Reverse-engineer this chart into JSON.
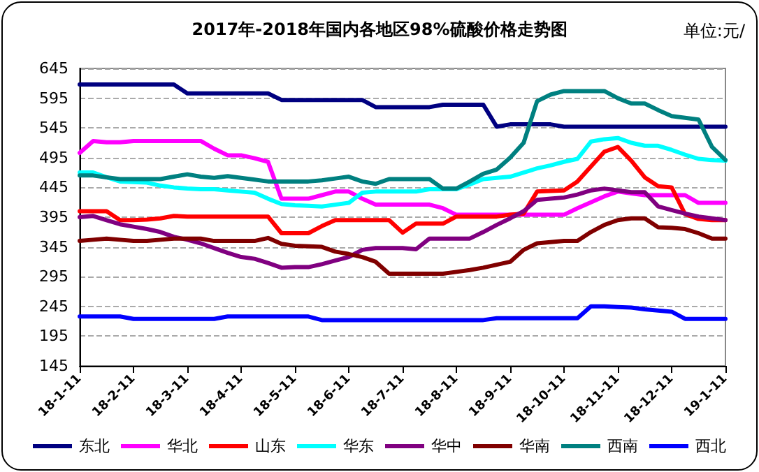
{
  "chart_data": {
    "type": "line",
    "title": "2017年-2018年国内各地区98%硫酸价格走势图",
    "annotations": [
      "单位:元/"
    ],
    "categories": [
      "18-1-11",
      null,
      null,
      null,
      "18-2-11",
      null,
      null,
      null,
      "18-3-11",
      null,
      null,
      null,
      "18-4-11",
      null,
      null,
      null,
      "18-5-11",
      null,
      null,
      null,
      "18-6-11",
      null,
      null,
      null,
      "18-7-11",
      null,
      null,
      null,
      "18-8-11",
      null,
      null,
      null,
      "18-9-11",
      null,
      null,
      null,
      "18-10-11",
      null,
      null,
      null,
      "18-11-11",
      null,
      null,
      null,
      "18-12-11",
      null,
      null,
      null,
      "19-1-11"
    ],
    "series": [
      {
        "name": "东北",
        "color": "#000080",
        "values": [
          618,
          618,
          618,
          618,
          618,
          618,
          618,
          618,
          603,
          603,
          603,
          603,
          603,
          603,
          603,
          592,
          592,
          592,
          592,
          592,
          592,
          592,
          580,
          580,
          580,
          580,
          580,
          584,
          584,
          584,
          584,
          547,
          551,
          551,
          551,
          551,
          547,
          547,
          547,
          547,
          547,
          547,
          547,
          547,
          547,
          547,
          547,
          547,
          547
        ]
      },
      {
        "name": "华北",
        "color": "#ff00ff",
        "values": [
          503,
          523,
          521,
          521,
          523,
          523,
          523,
          523,
          523,
          523,
          510,
          499,
          499,
          494,
          488,
          426,
          426,
          426,
          432,
          438,
          438,
          426,
          416,
          416,
          416,
          416,
          416,
          410,
          399,
          399,
          399,
          399,
          399,
          399,
          399,
          399,
          399,
          410,
          420,
          430,
          438,
          435,
          432,
          432,
          432,
          432,
          419,
          419,
          419
        ]
      },
      {
        "name": "山东",
        "color": "#ff0000",
        "values": [
          405,
          405,
          405,
          390,
          390,
          391,
          393,
          397,
          396,
          396,
          396,
          396,
          396,
          396,
          396,
          368,
          368,
          368,
          380,
          390,
          390,
          390,
          390,
          390,
          369,
          384,
          384,
          384,
          396,
          396,
          396,
          396,
          399,
          401,
          438,
          439,
          440,
          455,
          480,
          505,
          513,
          490,
          462,
          447,
          445,
          400,
          392,
          390,
          390
        ]
      },
      {
        "name": "华东",
        "color": "#00ffff",
        "values": [
          470,
          470,
          462,
          455,
          454,
          453,
          448,
          445,
          443,
          442,
          442,
          440,
          438,
          436,
          426,
          417,
          415,
          414,
          413,
          416,
          419,
          436,
          438,
          438,
          438,
          438,
          442,
          442,
          442,
          450,
          459,
          461,
          463,
          470,
          477,
          482,
          488,
          493,
          522,
          526,
          528,
          520,
          515,
          515,
          508,
          500,
          493,
          491,
          490
        ]
      },
      {
        "name": "华中",
        "color": "#800080",
        "values": [
          395,
          397,
          390,
          383,
          379,
          375,
          370,
          362,
          357,
          351,
          343,
          335,
          328,
          325,
          318,
          310,
          311,
          311,
          316,
          322,
          328,
          340,
          343,
          343,
          343,
          341,
          359,
          359,
          359,
          359,
          370,
          382,
          393,
          405,
          424,
          426,
          428,
          433,
          440,
          443,
          440,
          437,
          437,
          413,
          407,
          401,
          396,
          393,
          390
        ]
      },
      {
        "name": "华南",
        "color": "#800000",
        "values": [
          355,
          357,
          359,
          357,
          355,
          355,
          357,
          359,
          359,
          359,
          355,
          355,
          355,
          355,
          360,
          350,
          347,
          346,
          345,
          337,
          333,
          328,
          320,
          300,
          300,
          300,
          300,
          300,
          303,
          306,
          310,
          315,
          320,
          340,
          351,
          353,
          355,
          355,
          370,
          382,
          390,
          393,
          393,
          378,
          377,
          375,
          368,
          359,
          359
        ]
      },
      {
        "name": "西南",
        "color": "#008080",
        "values": [
          465,
          465,
          462,
          459,
          459,
          459,
          459,
          463,
          467,
          463,
          461,
          464,
          461,
          458,
          455,
          455,
          455,
          455,
          457,
          460,
          463,
          455,
          451,
          459,
          459,
          459,
          459,
          443,
          443,
          455,
          468,
          475,
          495,
          520,
          590,
          601,
          607,
          607,
          607,
          607,
          595,
          586,
          586,
          575,
          565,
          562,
          559,
          513,
          491
        ]
      },
      {
        "name": "西北",
        "color": "#0000ff",
        "values": [
          228,
          228,
          228,
          228,
          224,
          224,
          224,
          224,
          224,
          224,
          224,
          228,
          228,
          228,
          228,
          228,
          228,
          228,
          222,
          222,
          222,
          222,
          222,
          222,
          222,
          222,
          222,
          222,
          222,
          222,
          222,
          225,
          225,
          225,
          225,
          225,
          225,
          225,
          245,
          245,
          244,
          243,
          240,
          238,
          236,
          224,
          224,
          224,
          224
        ]
      }
    ],
    "ylim": [
      145,
      645
    ],
    "yticks": [
      145,
      195,
      245,
      295,
      345,
      395,
      445,
      495,
      545,
      595,
      645
    ],
    "grid": "y",
    "legend": "bottom",
    "marker": "none",
    "line_style": "solid"
  }
}
